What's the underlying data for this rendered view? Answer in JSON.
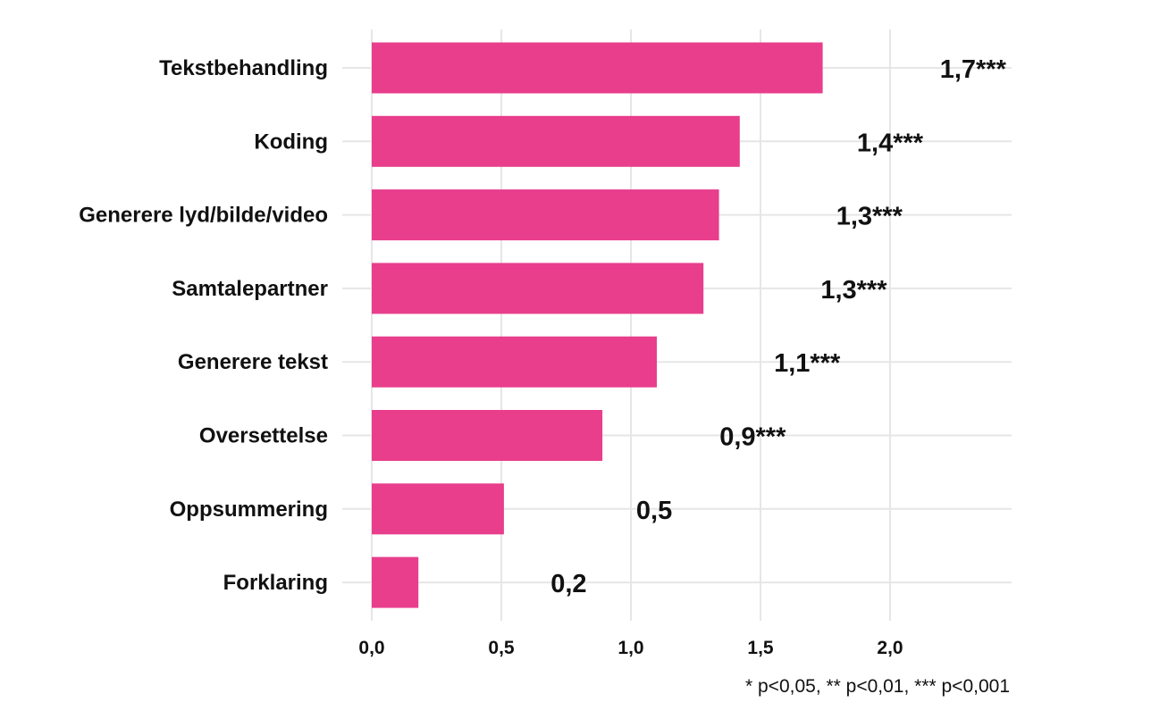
{
  "chart_data": {
    "type": "bar",
    "orientation": "horizontal",
    "categories": [
      "Tekstbehandling",
      "Koding",
      "Generere lyd/bilde/video",
      "Samtalepartner",
      "Generere tekst",
      "Oversettelse",
      "Oppsummering",
      "Forklaring"
    ],
    "values": [
      1.74,
      1.42,
      1.34,
      1.28,
      1.1,
      0.89,
      0.51,
      0.18
    ],
    "data_labels": [
      "1,7***",
      "1,4***",
      "1,3***",
      "1,3***",
      "1,1***",
      "0,9***",
      "0,5",
      "0,2"
    ],
    "x_ticks": [
      0,
      0.5,
      1.0,
      1.5,
      2.0
    ],
    "x_tick_labels": [
      "0,0",
      "0,5",
      "1,0",
      "1,5",
      "2,0"
    ],
    "xlim": [
      0,
      2.45
    ],
    "grid": true,
    "bar_color": "#e83e8c",
    "note": "* p<0,05, ** p<0,01, *** p<0,001"
  }
}
